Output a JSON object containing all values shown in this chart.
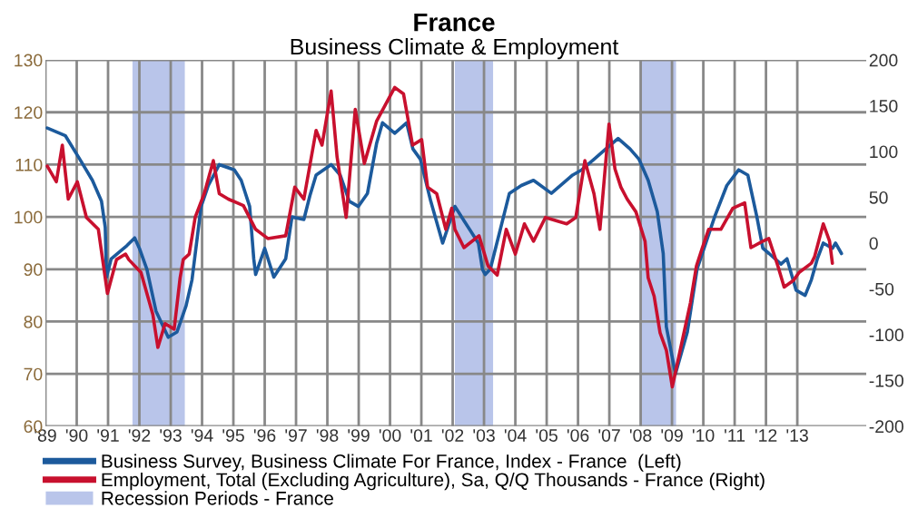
{
  "chart_data": {
    "type": "line",
    "title": "France",
    "subtitle": "Business Climate & Employment",
    "xlim": [
      1989,
      2015.2
    ],
    "xticks": [
      {
        "value": 1989,
        "label": "'89"
      },
      {
        "value": 1990,
        "label": "'90"
      },
      {
        "value": 1991,
        "label": "'91"
      },
      {
        "value": 1992,
        "label": "'92"
      },
      {
        "value": 1993,
        "label": "'93"
      },
      {
        "value": 1994,
        "label": "'94"
      },
      {
        "value": 1995,
        "label": "'95"
      },
      {
        "value": 1996,
        "label": "'96"
      },
      {
        "value": 1997,
        "label": "'97"
      },
      {
        "value": 1998,
        "label": "'98"
      },
      {
        "value": 1999,
        "label": "'99"
      },
      {
        "value": 2000,
        "label": "'00"
      },
      {
        "value": 2001,
        "label": "'01"
      },
      {
        "value": 2002,
        "label": "'02"
      },
      {
        "value": 2003,
        "label": "'03"
      },
      {
        "value": 2004,
        "label": "'04"
      },
      {
        "value": 2005,
        "label": "'05"
      },
      {
        "value": 2006,
        "label": "'06"
      },
      {
        "value": 2007,
        "label": "'07"
      },
      {
        "value": 2008,
        "label": "'08"
      },
      {
        "value": 2009,
        "label": "'09"
      },
      {
        "value": 2010,
        "label": "'10"
      },
      {
        "value": 2011,
        "label": "'11"
      },
      {
        "value": 2012,
        "label": "'12"
      },
      {
        "value": 2013,
        "label": "'13"
      }
    ],
    "ylim": [
      60,
      130
    ],
    "yticks": [
      60,
      70,
      80,
      90,
      100,
      110,
      120,
      130
    ],
    "y2lim": [
      -200,
      200
    ],
    "y2ticks": [
      -200,
      -150,
      -100,
      -50,
      0,
      50,
      100,
      150,
      200
    ],
    "grid": true,
    "legend": "bottom",
    "line_style": "solid",
    "marker": "none",
    "bands": [
      {
        "axis": "x",
        "from": 1991.78,
        "to": 1993.45,
        "label": "Recession Periods - France",
        "color": "#b9c5ea"
      },
      {
        "axis": "x",
        "from": 2002.07,
        "to": 2003.29,
        "color": "#b9c5ea"
      },
      {
        "axis": "x",
        "from": 2007.97,
        "to": 2009.13,
        "color": "#b9c5ea"
      }
    ],
    "series": [
      {
        "name": "Business Survey, Business Climate For France, Index - France  (Left)",
        "color": "#1c5a9c",
        "axis": "y",
        "x": [
          1989.06,
          1989.64,
          1990.1,
          1990.5,
          1990.79,
          1990.91,
          1990.95,
          1991.1,
          1991.4,
          1991.6,
          1991.85,
          1992.0,
          1992.24,
          1992.53,
          1992.92,
          1993.2,
          1993.49,
          1993.68,
          1993.97,
          1994.2,
          1994.55,
          1995.03,
          1995.25,
          1995.52,
          1995.65,
          1995.71,
          1996.0,
          1996.29,
          1996.67,
          1996.87,
          1997.25,
          1997.44,
          1997.64,
          1998.12,
          1998.41,
          1998.7,
          1998.99,
          1999.28,
          1999.57,
          1999.76,
          2000.15,
          2000.53,
          2000.73,
          2000.97,
          2001.3,
          2001.68,
          2002.07,
          2002.82,
          2002.95,
          2003.04,
          2003.2,
          2003.81,
          2004.19,
          2004.58,
          2005.15,
          2005.83,
          2006.12,
          2006.51,
          2006.89,
          2007.28,
          2007.66,
          2007.95,
          2008.24,
          2008.53,
          2008.72,
          2008.82,
          2009.11,
          2009.49,
          2009.8,
          2010.36,
          2010.75,
          2011.13,
          2011.42,
          2011.71,
          2011.9,
          2012.1,
          2012.48,
          2012.67,
          2012.96,
          2013.25,
          2013.45,
          2013.64,
          2013.83,
          2014.12,
          2014.22,
          2014.41
        ],
        "values": [
          117,
          115.5,
          111,
          107,
          103,
          98,
          88.5,
          92,
          93.5,
          94.5,
          96,
          94,
          90,
          82,
          77,
          78,
          83,
          88,
          102,
          106,
          110,
          109,
          107,
          102,
          92,
          89,
          94,
          88.5,
          92,
          100,
          99.5,
          104,
          108,
          110,
          108,
          103,
          102,
          104.5,
          114,
          118,
          116,
          118,
          113,
          111,
          103,
          95,
          102,
          95,
          90,
          89,
          90,
          104.5,
          106,
          107,
          104.5,
          108,
          109,
          111,
          113,
          115,
          113,
          111,
          107,
          101,
          93,
          79,
          70,
          78,
          90,
          100,
          106,
          109,
          108,
          100,
          94,
          93,
          91,
          92,
          86,
          85,
          88,
          92,
          95,
          94,
          95,
          93
        ]
      },
      {
        "name": "Employment, Total (Excluding Agriculture), Sa, Q/Q Thousands - France (Right)",
        "color": "#c8102e",
        "axis": "y2",
        "x": [
          1989.06,
          1989.35,
          1989.54,
          1989.73,
          1990.02,
          1990.31,
          1990.69,
          1990.98,
          1991.27,
          1991.56,
          1991.66,
          1992.05,
          1992.43,
          1992.59,
          1992.82,
          1993.11,
          1993.3,
          1993.4,
          1993.59,
          1993.78,
          1994.07,
          1994.36,
          1994.55,
          1994.84,
          1995.32,
          1995.71,
          1996.1,
          1996.67,
          1996.96,
          1997.25,
          1997.64,
          1997.83,
          1998.12,
          1998.31,
          1998.6,
          1998.89,
          1999.18,
          1999.57,
          2000.15,
          2000.43,
          2000.72,
          2001.01,
          2001.2,
          2001.49,
          2001.78,
          2001.97,
          2002.07,
          2002.36,
          2002.84,
          2003.13,
          2003.42,
          2003.71,
          2004.0,
          2004.29,
          2004.58,
          2004.96,
          2005.64,
          2005.93,
          2006.22,
          2006.51,
          2006.7,
          2006.99,
          2007.18,
          2007.37,
          2007.57,
          2007.85,
          2008.14,
          2008.24,
          2008.43,
          2008.62,
          2008.82,
          2009.01,
          2009.3,
          2009.59,
          2009.78,
          2009.97,
          2010.17,
          2010.56,
          2010.94,
          2011.32,
          2011.52,
          2011.9,
          2012.09,
          2012.38,
          2012.58,
          2012.87,
          2013.06,
          2013.45,
          2013.55,
          2013.83,
          2014.03,
          2014.12
        ],
        "values": [
          84,
          67,
          107,
          48,
          67,
          28,
          15,
          -55,
          -18,
          -12,
          -18,
          -32,
          -78,
          -114,
          -88,
          -94,
          -38,
          -18,
          -12,
          28,
          54,
          90,
          54,
          48,
          41,
          15,
          5,
          8,
          61,
          48,
          123,
          107,
          166,
          94,
          28,
          146,
          87,
          133,
          170,
          163,
          107,
          113,
          61,
          54,
          15,
          38,
          15,
          -5,
          8,
          -25,
          -35,
          15,
          -12,
          21,
          2,
          28,
          21,
          28,
          90,
          54,
          15,
          130,
          81,
          61,
          48,
          34,
          2,
          -38,
          -58,
          -98,
          -117,
          -157,
          -111,
          -65,
          -25,
          -5,
          15,
          15,
          38,
          44,
          -5,
          2,
          5,
          -25,
          -48,
          -41,
          -32,
          -22,
          -15,
          21,
          2,
          -22
        ]
      }
    ]
  }
}
